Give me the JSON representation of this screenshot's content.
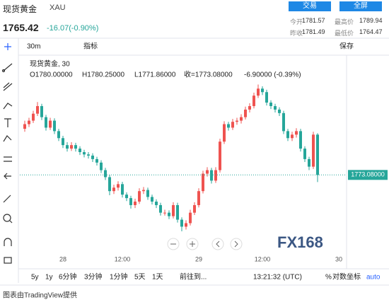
{
  "header": {
    "name": "现货黄金",
    "symbol": "XAU",
    "price": "1765.42",
    "change": "-16.07(-0.90%)",
    "buttons": [
      "交易",
      "全屏"
    ],
    "quotes": [
      [
        "今开",
        "1781.57",
        "最高价",
        "1789.94"
      ],
      [
        "昨收",
        "1781.49",
        "最低价",
        "1764.47"
      ]
    ]
  },
  "toolbar": {
    "interval": "30m",
    "indicators": "指标",
    "save": "保存"
  },
  "chart_data": {
    "type": "candlestick",
    "legend_title": "现货黄金, 30",
    "ohlc_legend": [
      "O1780.00000",
      "H1780.25000",
      "L1771.86000",
      "收=1773.08000",
      "-6.90000 (-0.39%)"
    ],
    "last_price_label": "1773.08000",
    "watermark": "FX168",
    "up_color": "#ef5350",
    "down_color": "#26a69a",
    "ylim": [
      1760,
      1793.4
    ],
    "categories": [
      null,
      null,
      null,
      null,
      null,
      null,
      null,
      null,
      null,
      "28",
      null,
      null,
      null,
      null,
      null,
      null,
      null,
      null,
      null,
      null,
      null,
      null,
      null,
      "12:00",
      null,
      null,
      null,
      null,
      null,
      null,
      null,
      null,
      null,
      null,
      null,
      null,
      null,
      null,
      null,
      null,
      null,
      "29",
      null,
      null,
      null,
      null,
      null,
      null,
      null,
      null,
      null,
      null,
      null,
      null,
      null,
      null,
      "12:00",
      null,
      null,
      null,
      null,
      null,
      null,
      null,
      null,
      null,
      null,
      null,
      null,
      null,
      null,
      null,
      null,
      null,
      "30"
    ],
    "open": [
      1781.0,
      1781.8,
      1782.4,
      1783.6,
      1784.9,
      1783.0,
      1781.2,
      1782.4,
      1780.6,
      1779.4,
      1778.2,
      1777.6,
      1778.2,
      1777.6,
      1777.0,
      1776.6,
      1776.4,
      1775.8,
      1775.2,
      1773.9,
      1772.7,
      1770.3,
      1770.9,
      1771.5,
      1769.7,
      1769.1,
      1767.9,
      1768.5,
      1770.3,
      1770.5,
      1769.3,
      1768.5,
      1767.9,
      1766.6,
      1766.6,
      1766.0,
      1767.9,
      1765.4,
      1764.2,
      1764.8,
      1766.6,
      1767.9,
      1770.3,
      1773.3,
      1773.9,
      1772.1,
      1773.9,
      1778.8,
      1781.8,
      1781.2,
      1782.2,
      1782.4,
      1783.0,
      1784.3,
      1784.9,
      1786.7,
      1787.9,
      1787.3,
      1785.5,
      1784.9,
      1784.3,
      1783.7,
      1780.6,
      1779.4,
      1780.0,
      1780.6,
      1777.6,
      1775.8,
      1774.5,
      1780.0,
      null,
      null,
      null,
      null,
      null
    ],
    "high": [
      1782.4,
      1782.9,
      1784.1,
      1785.6,
      1785.3,
      1783.4,
      1782.9,
      1782.8,
      1781.0,
      1779.8,
      1778.7,
      1778.7,
      1778.6,
      1778.0,
      1777.4,
      1777.0,
      1776.8,
      1776.2,
      1775.6,
      1774.3,
      1773.1,
      1771.4,
      1772.0,
      1771.9,
      1770.1,
      1769.5,
      1769.0,
      1770.8,
      1771.0,
      1770.9,
      1769.7,
      1768.9,
      1768.3,
      1767.1,
      1767.0,
      1768.4,
      1768.3,
      1765.8,
      1765.3,
      1767.1,
      1768.4,
      1770.8,
      1773.8,
      1774.4,
      1774.3,
      1774.4,
      1779.3,
      1782.3,
      1782.2,
      1782.7,
      1782.9,
      1783.5,
      1784.8,
      1785.4,
      1787.2,
      1788.6,
      1788.3,
      1787.7,
      1785.9,
      1785.3,
      1784.7,
      1784.1,
      1781.0,
      1780.5,
      1781.1,
      1781.0,
      1778.0,
      1776.2,
      1780.5,
      1780.25,
      null,
      null,
      null,
      null,
      null
    ],
    "low": [
      1780.5,
      1781.3,
      1782.0,
      1783.2,
      1782.5,
      1780.7,
      1780.8,
      1780.1,
      1778.9,
      1777.7,
      1777.1,
      1777.2,
      1777.1,
      1776.5,
      1776.1,
      1775.9,
      1775.3,
      1774.7,
      1773.4,
      1772.2,
      1769.6,
      1769.8,
      1770.4,
      1769.2,
      1768.6,
      1767.3,
      1767.4,
      1768.1,
      1769.8,
      1768.8,
      1768.0,
      1767.4,
      1766.1,
      1766.1,
      1765.5,
      1765.6,
      1764.9,
      1763.4,
      1763.7,
      1764.4,
      1766.2,
      1767.5,
      1769.9,
      1772.8,
      1771.6,
      1771.7,
      1773.5,
      1778.4,
      1780.7,
      1780.8,
      1781.7,
      1781.9,
      1782.6,
      1783.8,
      1784.5,
      1786.3,
      1786.8,
      1785.0,
      1784.4,
      1783.8,
      1783.2,
      1780.1,
      1778.9,
      1778.9,
      1779.5,
      1777.1,
      1775.3,
      1773.9,
      1774.1,
      1771.86,
      null,
      null,
      null,
      null,
      null
    ],
    "close": [
      1781.8,
      1782.4,
      1783.6,
      1784.9,
      1783.0,
      1781.2,
      1782.4,
      1780.6,
      1779.4,
      1778.2,
      1777.6,
      1778.2,
      1777.6,
      1777.0,
      1776.6,
      1776.4,
      1775.8,
      1775.2,
      1773.9,
      1772.7,
      1770.3,
      1770.9,
      1771.5,
      1769.7,
      1769.1,
      1767.9,
      1768.5,
      1770.3,
      1770.5,
      1769.3,
      1768.5,
      1767.9,
      1766.6,
      1766.6,
      1766.0,
      1767.9,
      1765.4,
      1764.2,
      1764.8,
      1766.6,
      1767.9,
      1770.3,
      1773.3,
      1773.9,
      1772.1,
      1773.9,
      1778.8,
      1781.8,
      1781.2,
      1782.2,
      1782.4,
      1783.0,
      1784.3,
      1784.9,
      1786.7,
      1787.9,
      1787.3,
      1785.5,
      1784.9,
      1784.3,
      1783.7,
      1780.6,
      1779.4,
      1780.0,
      1780.6,
      1777.6,
      1775.8,
      1774.5,
      1780.0,
      1773.08,
      null,
      null,
      null,
      null,
      null
    ]
  },
  "bottom_bar": {
    "ranges": [
      "5y",
      "1y",
      "6分钟",
      "3分钟",
      "1分钟",
      "5天",
      "1天"
    ],
    "goto": "前往到...",
    "time": "13:21:32 (UTC)",
    "percent": "%",
    "log": "对数坐标",
    "auto": "auto"
  },
  "footer": "图表由TradingView提供"
}
